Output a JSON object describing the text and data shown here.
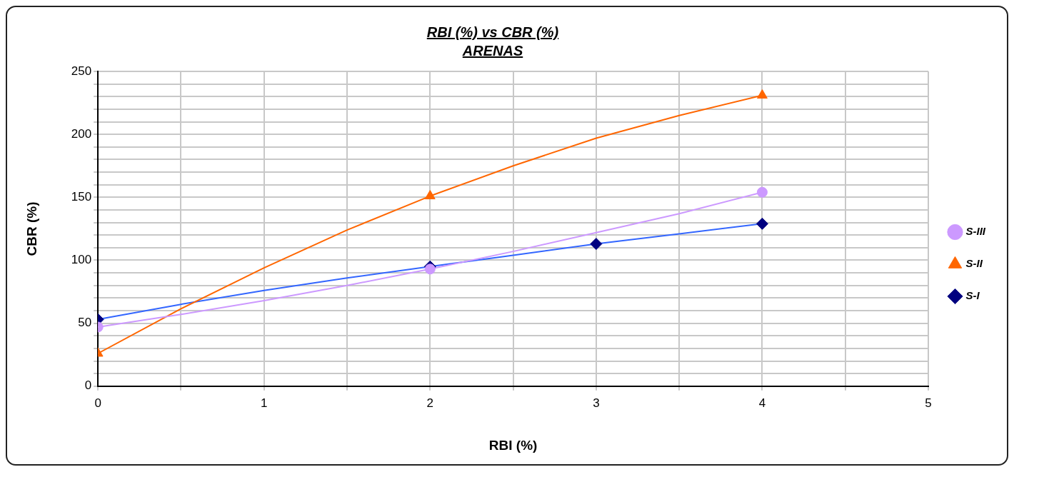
{
  "chart_data": {
    "type": "scatter",
    "title": "RBI (%) vs CBR (%)",
    "subtitle": "ARENAS",
    "xlabel": "RBI (%)",
    "ylabel": "CBR (%)",
    "xlim": [
      0,
      5
    ],
    "xticks": [
      0,
      {
        "value": 0.5,
        "label": null
      },
      1,
      {
        "value": 1.5,
        "label": null
      },
      2,
      {
        "value": 2.5,
        "label": null
      },
      3,
      {
        "value": 3.5,
        "label": null
      },
      4,
      {
        "value": 4.5,
        "label": null
      },
      5
    ],
    "ylim": [
      0,
      250
    ],
    "yticks": [
      0,
      {
        "value": 10,
        "label": null
      },
      {
        "value": 20,
        "label": null
      },
      {
        "value": 30,
        "label": null
      },
      {
        "value": 40,
        "label": null
      },
      50,
      {
        "value": 60,
        "label": null
      },
      {
        "value": 70,
        "label": null
      },
      {
        "value": 80,
        "label": null
      },
      {
        "value": 90,
        "label": null
      },
      100,
      {
        "value": 110,
        "label": null
      },
      {
        "value": 120,
        "label": null
      },
      {
        "value": 130,
        "label": null
      },
      {
        "value": 140,
        "label": null
      },
      150,
      {
        "value": 160,
        "label": null
      },
      {
        "value": 170,
        "label": null
      },
      {
        "value": 180,
        "label": null
      },
      {
        "value": 190,
        "label": null
      },
      200,
      {
        "value": 210,
        "label": null
      },
      {
        "value": 220,
        "label": null
      },
      {
        "value": 230,
        "label": null
      },
      {
        "value": 240,
        "label": null
      },
      250
    ],
    "grid": true,
    "legend": "right",
    "series": [
      {
        "type": "line",
        "color": "#3366ff",
        "marker": "none",
        "x": [
          0,
          0.5,
          1,
          1.5,
          2,
          2.5,
          3,
          3.5,
          4
        ],
        "values": [
          53,
          65,
          76,
          86,
          95,
          104,
          113,
          121,
          129
        ]
      },
      {
        "type": "line",
        "color": "#ff6600",
        "marker": "none",
        "x": [
          0,
          0.5,
          1,
          1.5,
          2,
          2.5,
          3,
          3.5,
          4
        ],
        "values": [
          26,
          61.5,
          94,
          124,
          151,
          175,
          197,
          215,
          231
        ]
      },
      {
        "type": "line",
        "color": "#cc99ff",
        "marker": "none",
        "x": [
          0,
          0.5,
          1,
          1.5,
          2,
          2.5,
          3,
          3.5,
          4
        ],
        "values": [
          47,
          57,
          68,
          80,
          93,
          107,
          122,
          137,
          154
        ]
      },
      {
        "name": "S-I",
        "type": "scatter",
        "color": "#000080",
        "marker": "diamond",
        "x": [
          0,
          2,
          3,
          4
        ],
        "values": [
          53,
          95,
          113,
          129
        ]
      },
      {
        "name": "S-II",
        "type": "scatter",
        "color": "#ff6600",
        "marker": "triangle",
        "x": [
          0,
          2,
          4
        ],
        "values": [
          26,
          151,
          231
        ]
      },
      {
        "name": "S-III",
        "type": "scatter",
        "color": "#cc99ff",
        "marker": "circle",
        "x": [
          0,
          2,
          4
        ],
        "values": [
          47,
          93,
          154
        ]
      }
    ]
  }
}
